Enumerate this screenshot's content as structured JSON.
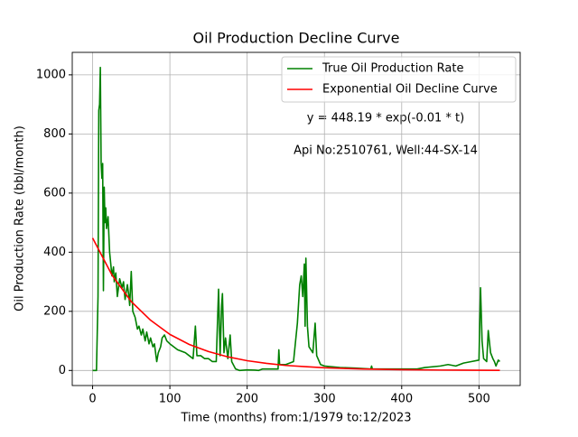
{
  "chart_data": {
    "type": "line",
    "title": "Oil Production Decline Curve",
    "xlabel": "Time (months) from:1/1979 to:12/2023",
    "ylabel": "Oil Production Rate (bbl/month)",
    "annotations": [
      "y = 448.19 * exp(-0.01 * t)",
      "Api No:2510761, Well:44-SX-14"
    ],
    "xlim": [
      -26.35,
      553.35
    ],
    "ylim": [
      -51,
      1076
    ],
    "xticks": [
      0,
      100,
      200,
      300,
      400,
      500
    ],
    "yticks": [
      0,
      200,
      400,
      600,
      800,
      1000
    ],
    "grid": true,
    "legend": "upper right",
    "series": [
      {
        "name": "True Oil Production Rate",
        "color": "#008000",
        "x": [
          0,
          5,
          7,
          8,
          9,
          10,
          11,
          12,
          13,
          14,
          15,
          16,
          17,
          18,
          20,
          22,
          25,
          27,
          28,
          30,
          32,
          35,
          38,
          40,
          42,
          45,
          47,
          48,
          50,
          52,
          55,
          58,
          60,
          63,
          65,
          68,
          70,
          73,
          75,
          78,
          80,
          83,
          85,
          88,
          90,
          93,
          96,
          100,
          105,
          110,
          115,
          120,
          125,
          130,
          133,
          135,
          140,
          145,
          150,
          155,
          160,
          163,
          165,
          167,
          168,
          170,
          172,
          175,
          178,
          180,
          185,
          190,
          200,
          210,
          215,
          220,
          240,
          241,
          242,
          250,
          260,
          265,
          268,
          270,
          272,
          274,
          275,
          276,
          278,
          280,
          285,
          288,
          290,
          295,
          300,
          320,
          340,
          360,
          361,
          362,
          380,
          400,
          420,
          430,
          450,
          460,
          470,
          480,
          490,
          500,
          502,
          504,
          506,
          510,
          512,
          515,
          518,
          520,
          522,
          525,
          527
        ],
        "values": [
          0,
          0,
          250,
          880,
          900,
          1025,
          700,
          650,
          700,
          270,
          620,
          500,
          550,
          480,
          520,
          400,
          320,
          350,
          300,
          330,
          250,
          310,
          280,
          300,
          240,
          290,
          250,
          220,
          335,
          200,
          180,
          140,
          150,
          120,
          140,
          100,
          130,
          90,
          110,
          80,
          90,
          30,
          60,
          80,
          110,
          120,
          100,
          90,
          80,
          70,
          65,
          60,
          50,
          40,
          150,
          50,
          50,
          40,
          40,
          30,
          30,
          275,
          50,
          220,
          260,
          60,
          110,
          40,
          120,
          30,
          5,
          0,
          2,
          1,
          0,
          5,
          5,
          70,
          20,
          20,
          30,
          160,
          290,
          320,
          250,
          360,
          150,
          380,
          150,
          80,
          60,
          160,
          50,
          20,
          15,
          10,
          8,
          5,
          15,
          5,
          5,
          5,
          5,
          10,
          15,
          20,
          15,
          25,
          30,
          35,
          280,
          100,
          40,
          30,
          135,
          60,
          40,
          30,
          15,
          35,
          30
        ]
      },
      {
        "name": "Exponential Oil Decline Curve",
        "color": "#ff0000",
        "x": [
          0,
          25,
          50,
          75,
          100,
          125,
          150,
          175,
          200,
          225,
          250,
          275,
          300,
          350,
          400,
          450,
          527
        ],
        "values": [
          448,
          323,
          233,
          170,
          122,
          88,
          64,
          46,
          33,
          24,
          17,
          13,
          9,
          5,
          2.5,
          1.3,
          0.5
        ]
      }
    ]
  }
}
